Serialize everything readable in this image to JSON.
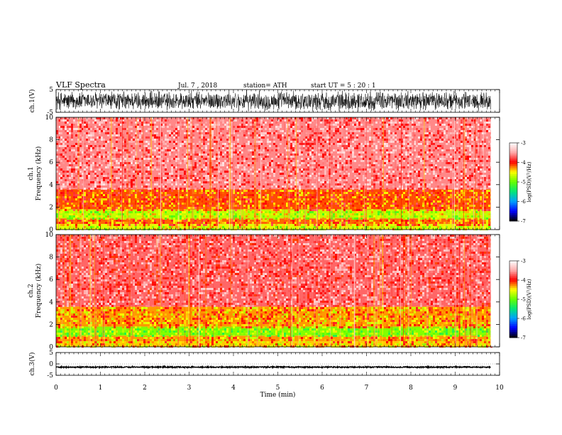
{
  "header": {
    "title": "VLF  Spectra",
    "date": "Jul.  7  , 2018",
    "station": "station= ATH",
    "start": "start  UT  =    5  : 20 : 1"
  },
  "chart_data": [
    {
      "type": "line",
      "name": "ch1-waveform",
      "ylabel": "ch.1(V)",
      "ylim": [
        -5,
        5
      ],
      "yticks": [
        "5",
        "-5"
      ],
      "xlim": [
        0,
        9.8
      ],
      "amplitude": 4.8
    },
    {
      "type": "heatmap",
      "name": "ch1-spectrogram",
      "ylabel_line1": "ch.1",
      "ylabel_line2": "Frequency  (kHz)",
      "ylim": [
        0,
        10
      ],
      "yticks": [
        "0",
        "2",
        "4",
        "6",
        "8",
        "10"
      ],
      "xlim": [
        0,
        9.8
      ],
      "colorbar": {
        "label": "log(PSD)(V²/Hz)",
        "range": [
          -7,
          -3
        ],
        "ticks": [
          "-3",
          "-4",
          "-5",
          "-6",
          "-7"
        ]
      },
      "bands_kHz_level": [
        {
          "from": 0,
          "to": 0.5,
          "level": -4.6
        },
        {
          "from": 0.5,
          "to": 1.0,
          "level": -4.2
        },
        {
          "from": 1.0,
          "to": 1.8,
          "level": -4.7
        },
        {
          "from": 1.8,
          "to": 3.6,
          "level": -4.15
        },
        {
          "from": 3.6,
          "to": 10,
          "level": -3.6
        }
      ]
    },
    {
      "type": "heatmap",
      "name": "ch2-spectrogram",
      "ylabel_line1": "ch.2",
      "ylabel_line2": "Frequency  (kHz)",
      "ylim": [
        0,
        10
      ],
      "yticks": [
        "0",
        "2",
        "4",
        "6",
        "8",
        "10"
      ],
      "xlim": [
        0,
        9.8
      ],
      "colorbar": {
        "label": "log(PSD)(V²/Hz)",
        "range": [
          -7,
          -3
        ],
        "ticks": [
          "-3",
          "-4",
          "-5",
          "-6",
          "-7"
        ]
      },
      "bands_kHz_level": [
        {
          "from": 0,
          "to": 0.5,
          "level": -4.4
        },
        {
          "from": 0.5,
          "to": 1.0,
          "level": -4.3
        },
        {
          "from": 1.0,
          "to": 1.8,
          "level": -4.9
        },
        {
          "from": 1.8,
          "to": 3.6,
          "level": -4.3
        },
        {
          "from": 3.6,
          "to": 10,
          "level": -3.7
        }
      ]
    },
    {
      "type": "line",
      "name": "ch3-waveform",
      "ylabel": "ch.3(V)",
      "ylim": [
        -5,
        5
      ],
      "yticks": [
        "5",
        "0",
        "-5"
      ],
      "xlim": [
        0,
        9.8
      ],
      "offset": -1.4,
      "amplitude": 0.25,
      "xlabel": "Time  (min)",
      "xticks": [
        "0",
        "1",
        "2",
        "3",
        "4",
        "5",
        "6",
        "7",
        "8",
        "9",
        "10"
      ],
      "xaxis_range": [
        0,
        10
      ]
    }
  ]
}
